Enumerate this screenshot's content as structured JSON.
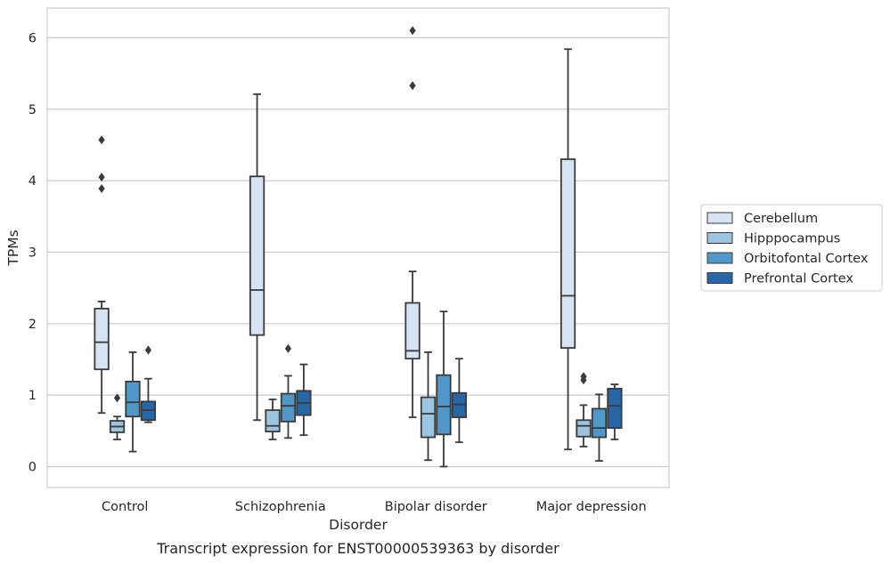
{
  "chart_data": {
    "type": "box",
    "xlabel": "Disorder",
    "ylabel": "TPMs",
    "caption": "Transcript expression for ENST00000539363 by disorder",
    "ylim": [
      -0.3,
      6.4
    ],
    "yticks": [
      0,
      1,
      2,
      3,
      4,
      5,
      6
    ],
    "grid": "horizontal",
    "legend_position": "right",
    "categories": [
      "Control",
      "Schizophrenia",
      "Bipolar disorder",
      "Major depression"
    ],
    "series": [
      {
        "name": "Cerebellum",
        "color": "#d5e3f2",
        "boxes": [
          {
            "whislo": 0.75,
            "q1": 1.36,
            "med": 1.74,
            "q3": 2.21,
            "whishi": 2.31,
            "fliers": [
              3.89,
              4.05,
              4.57
            ]
          },
          {
            "whislo": 0.65,
            "q1": 1.84,
            "med": 2.47,
            "q3": 4.06,
            "whishi": 5.21,
            "fliers": []
          },
          {
            "whislo": 0.69,
            "q1": 1.51,
            "med": 1.62,
            "q3": 2.29,
            "whishi": 2.73,
            "fliers": [
              5.33,
              6.1
            ]
          },
          {
            "whislo": 0.24,
            "q1": 1.66,
            "med": 2.39,
            "q3": 4.3,
            "whishi": 5.84,
            "fliers": []
          }
        ]
      },
      {
        "name": "Hipppocampus",
        "color": "#9ac4df",
        "boxes": [
          {
            "whislo": 0.38,
            "q1": 0.48,
            "med": 0.56,
            "q3": 0.64,
            "whishi": 0.7,
            "fliers": [
              0.96
            ]
          },
          {
            "whislo": 0.38,
            "q1": 0.49,
            "med": 0.57,
            "q3": 0.79,
            "whishi": 0.94,
            "fliers": []
          },
          {
            "whislo": 0.09,
            "q1": 0.41,
            "med": 0.74,
            "q3": 0.97,
            "whishi": 1.6,
            "fliers": []
          },
          {
            "whislo": 0.28,
            "q1": 0.42,
            "med": 0.57,
            "q3": 0.65,
            "whishi": 0.86,
            "fliers": [
              1.21,
              1.26
            ]
          }
        ]
      },
      {
        "name": "Orbitofontal Cortex",
        "color": "#5198c8",
        "boxes": [
          {
            "whislo": 0.21,
            "q1": 0.7,
            "med": 0.9,
            "q3": 1.19,
            "whishi": 1.6,
            "fliers": []
          },
          {
            "whislo": 0.4,
            "q1": 0.63,
            "med": 0.85,
            "q3": 1.02,
            "whishi": 1.27,
            "fliers": [
              1.65
            ]
          },
          {
            "whislo": 0.0,
            "q1": 0.45,
            "med": 0.84,
            "q3": 1.28,
            "whishi": 2.17,
            "fliers": []
          },
          {
            "whislo": 0.08,
            "q1": 0.41,
            "med": 0.54,
            "q3": 0.81,
            "whishi": 1.01,
            "fliers": []
          }
        ]
      },
      {
        "name": "Prefrontal Cortex",
        "color": "#2767a8",
        "boxes": [
          {
            "whislo": 0.62,
            "q1": 0.65,
            "med": 0.79,
            "q3": 0.91,
            "whishi": 1.23,
            "fliers": [
              1.63
            ]
          },
          {
            "whislo": 0.44,
            "q1": 0.72,
            "med": 0.89,
            "q3": 1.06,
            "whishi": 1.43,
            "fliers": []
          },
          {
            "whislo": 0.34,
            "q1": 0.69,
            "med": 0.87,
            "q3": 1.03,
            "whishi": 1.51,
            "fliers": []
          },
          {
            "whislo": 0.38,
            "q1": 0.54,
            "med": 0.85,
            "q3": 1.09,
            "whishi": 1.15,
            "fliers": []
          }
        ]
      }
    ],
    "colors": {
      "grid": "#cccccc",
      "frame": "#cccccc",
      "line": "#3a3a3a",
      "legend_border": "#cccccc"
    }
  }
}
